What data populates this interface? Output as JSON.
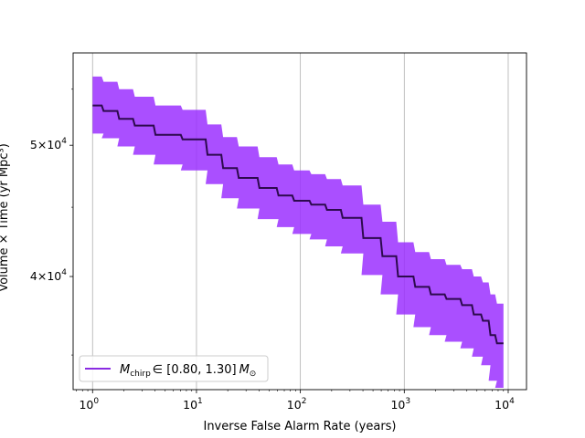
{
  "chart_data": {
    "type": "area",
    "title": "",
    "xlabel": "Inverse False Alarm Rate (years)",
    "ylabel": "Volume × Time (yr Mpc³)",
    "xscale": "log",
    "yscale": "log",
    "xlim": [
      0.65,
      15000
    ],
    "ylim": [
      33000,
      58500
    ],
    "x_ticks": [
      {
        "value": 1,
        "base": "10",
        "exp": "0"
      },
      {
        "value": 10,
        "base": "10",
        "exp": "1"
      },
      {
        "value": 100,
        "base": "10",
        "exp": "2"
      },
      {
        "value": 1000,
        "base": "10",
        "exp": "3"
      },
      {
        "value": 10000,
        "base": "10",
        "exp": "4"
      }
    ],
    "y_ticks": [
      {
        "value": 40000,
        "mant": "4",
        "base": "10",
        "exp": "4"
      },
      {
        "value": 50000,
        "mant": "5",
        "base": "10",
        "exp": "4"
      }
    ],
    "grid": "x-major",
    "legend_position": "lower-left",
    "colors": {
      "line": "#2d0a4e",
      "band": "#9b30ff",
      "legend_line": "#8a2be2",
      "grid": "#b0b0b0"
    },
    "series": [
      {
        "name": "M_chirp ∈ [0.80, 1.30] M_⊙",
        "x": [
          1,
          1.5,
          2,
          3,
          5,
          10,
          15,
          20,
          30,
          50,
          70,
          100,
          150,
          200,
          300,
          500,
          700,
          1000,
          1500,
          2000,
          3000,
          4000,
          5000,
          6000,
          7000,
          8000,
          9000
        ],
        "y": [
          53500,
          53000,
          52300,
          51700,
          50900,
          50500,
          49200,
          48100,
          47300,
          46500,
          45900,
          45500,
          45200,
          44800,
          44200,
          42700,
          41400,
          40000,
          39300,
          38800,
          38500,
          38100,
          37500,
          37100,
          36200,
          35700,
          35700
        ],
        "y_lower": [
          51000,
          50600,
          49900,
          49200,
          48400,
          47900,
          46800,
          45700,
          44900,
          44100,
          43500,
          43000,
          42600,
          42100,
          41600,
          40100,
          38800,
          37500,
          36700,
          36200,
          35800,
          35400,
          34900,
          34400,
          33500,
          33100,
          33100
        ],
        "y_upper": [
          56200,
          55700,
          55000,
          54300,
          53500,
          53100,
          51800,
          50700,
          49900,
          49000,
          48400,
          47900,
          47600,
          47200,
          46700,
          45200,
          43900,
          42400,
          41700,
          41200,
          40800,
          40500,
          40000,
          39600,
          38800,
          38200,
          38200
        ]
      }
    ],
    "legend": {
      "label_main": "M",
      "label_sub": "chirp",
      "label_rest": "∈ [0.80, 1.30]",
      "label_unit": "M",
      "label_unit_sub": "⊙"
    }
  }
}
